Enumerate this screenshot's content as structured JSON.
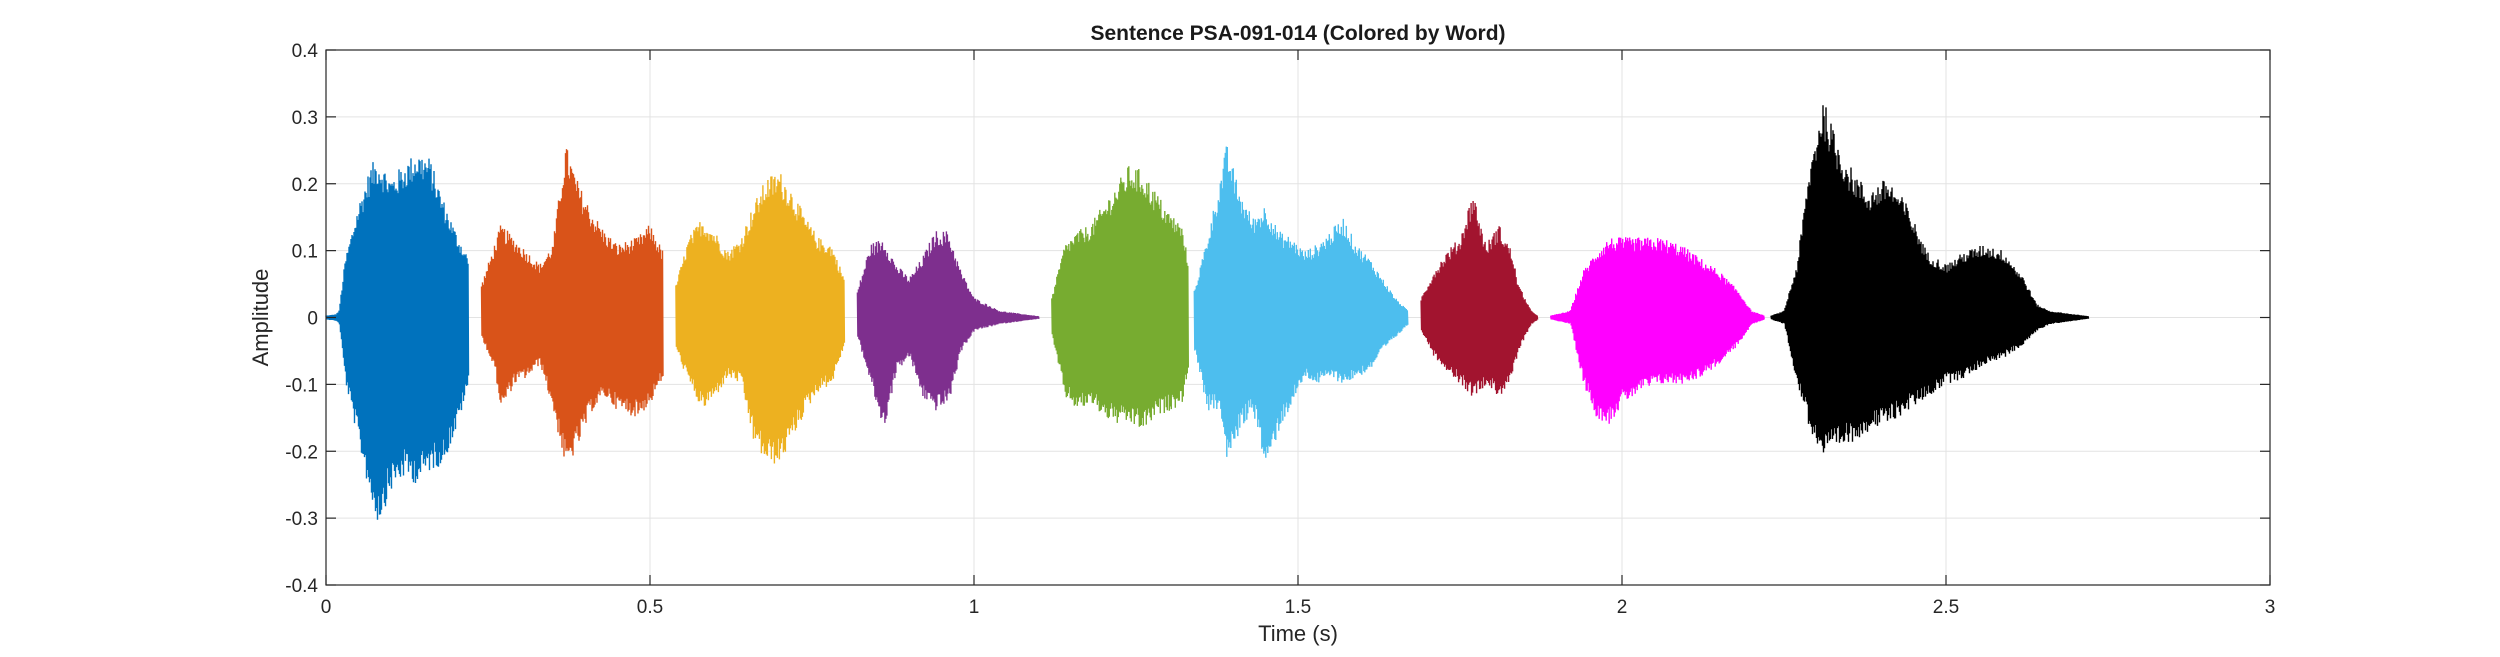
{
  "chart_data": {
    "type": "line",
    "title": "Sentence PSA-091-014 (Colored by Word)",
    "xlabel": "Time (s)",
    "ylabel": "Amplitude",
    "xlim": [
      0,
      3
    ],
    "ylim": [
      -0.4,
      0.4
    ],
    "xticks": [
      0,
      0.5,
      1,
      1.5,
      2,
      2.5,
      3
    ],
    "xtick_labels": [
      "0",
      "0.5",
      "1",
      "1.5",
      "2",
      "2.5",
      "3"
    ],
    "yticks": [
      -0.4,
      -0.3,
      -0.2,
      -0.1,
      0,
      0.1,
      0.2,
      0.3,
      0.4
    ],
    "ytick_labels": [
      "-0.4",
      "-0.3",
      "-0.2",
      "-0.1",
      "0",
      "0.1",
      "0.2",
      "0.3",
      "0.4"
    ],
    "grid": true,
    "legend": "none",
    "series": [
      {
        "color": "#0072BD",
        "start": 0.0,
        "end": 0.22,
        "envelope": [
          [
            0.0,
            0.003,
            -0.003
          ],
          [
            0.015,
            0.005,
            -0.005
          ],
          [
            0.02,
            0.01,
            -0.01
          ],
          [
            0.03,
            0.09,
            -0.1
          ],
          [
            0.05,
            0.17,
            -0.19
          ],
          [
            0.07,
            0.23,
            -0.28
          ],
          [
            0.08,
            0.24,
            -0.31
          ],
          [
            0.1,
            0.21,
            -0.26
          ],
          [
            0.12,
            0.23,
            -0.24
          ],
          [
            0.14,
            0.25,
            -0.25
          ],
          [
            0.16,
            0.24,
            -0.23
          ],
          [
            0.18,
            0.18,
            -0.22
          ],
          [
            0.2,
            0.13,
            -0.17
          ],
          [
            0.22,
            0.09,
            -0.1
          ]
        ]
      },
      {
        "color": "#D95319",
        "start": 0.24,
        "end": 0.52,
        "envelope": [
          [
            0.24,
            0.05,
            -0.03
          ],
          [
            0.26,
            0.11,
            -0.08
          ],
          [
            0.27,
            0.14,
            -0.14
          ],
          [
            0.29,
            0.12,
            -0.1
          ],
          [
            0.31,
            0.1,
            -0.09
          ],
          [
            0.33,
            0.08,
            -0.07
          ],
          [
            0.35,
            0.11,
            -0.14
          ],
          [
            0.37,
            0.26,
            -0.23
          ],
          [
            0.39,
            0.2,
            -0.19
          ],
          [
            0.41,
            0.16,
            -0.14
          ],
          [
            0.43,
            0.13,
            -0.12
          ],
          [
            0.45,
            0.11,
            -0.14
          ],
          [
            0.48,
            0.12,
            -0.15
          ],
          [
            0.5,
            0.14,
            -0.13
          ],
          [
            0.52,
            0.1,
            -0.09
          ]
        ]
      },
      {
        "color": "#EDB120",
        "start": 0.54,
        "end": 0.8,
        "envelope": [
          [
            0.54,
            0.05,
            -0.05
          ],
          [
            0.56,
            0.12,
            -0.1
          ],
          [
            0.58,
            0.15,
            -0.14
          ],
          [
            0.6,
            0.13,
            -0.12
          ],
          [
            0.62,
            0.1,
            -0.09
          ],
          [
            0.64,
            0.12,
            -0.1
          ],
          [
            0.66,
            0.17,
            -0.19
          ],
          [
            0.68,
            0.21,
            -0.22
          ],
          [
            0.7,
            0.22,
            -0.22
          ],
          [
            0.72,
            0.19,
            -0.18
          ],
          [
            0.74,
            0.15,
            -0.14
          ],
          [
            0.76,
            0.12,
            -0.11
          ],
          [
            0.78,
            0.11,
            -0.1
          ],
          [
            0.8,
            0.06,
            -0.04
          ]
        ]
      },
      {
        "color": "#7E2F8E",
        "start": 0.82,
        "end": 1.1,
        "envelope": [
          [
            0.82,
            0.04,
            -0.03
          ],
          [
            0.84,
            0.11,
            -0.1
          ],
          [
            0.86,
            0.12,
            -0.17
          ],
          [
            0.88,
            0.08,
            -0.08
          ],
          [
            0.9,
            0.06,
            -0.06
          ],
          [
            0.92,
            0.09,
            -0.12
          ],
          [
            0.94,
            0.13,
            -0.14
          ],
          [
            0.96,
            0.13,
            -0.13
          ],
          [
            0.98,
            0.07,
            -0.05
          ],
          [
            1.0,
            0.03,
            -0.02
          ],
          [
            1.04,
            0.01,
            -0.01
          ],
          [
            1.1,
            0.002,
            -0.002
          ]
        ]
      },
      {
        "color": "#77AC30",
        "start": 1.12,
        "end": 1.33,
        "envelope": [
          [
            1.12,
            0.03,
            -0.03
          ],
          [
            1.14,
            0.11,
            -0.12
          ],
          [
            1.16,
            0.13,
            -0.14
          ],
          [
            1.18,
            0.14,
            -0.13
          ],
          [
            1.2,
            0.17,
            -0.15
          ],
          [
            1.22,
            0.2,
            -0.16
          ],
          [
            1.24,
            0.23,
            -0.16
          ],
          [
            1.26,
            0.22,
            -0.17
          ],
          [
            1.28,
            0.19,
            -0.15
          ],
          [
            1.3,
            0.16,
            -0.14
          ],
          [
            1.32,
            0.14,
            -0.13
          ],
          [
            1.33,
            0.09,
            -0.08
          ]
        ]
      },
      {
        "color": "#4DBEEE",
        "start": 1.34,
        "end": 1.67,
        "envelope": [
          [
            1.34,
            0.04,
            -0.05
          ],
          [
            1.36,
            0.12,
            -0.14
          ],
          [
            1.38,
            0.21,
            -0.14
          ],
          [
            1.39,
            0.26,
            -0.22
          ],
          [
            1.41,
            0.19,
            -0.17
          ],
          [
            1.43,
            0.15,
            -0.14
          ],
          [
            1.45,
            0.17,
            -0.23
          ],
          [
            1.47,
            0.13,
            -0.17
          ],
          [
            1.49,
            0.12,
            -0.13
          ],
          [
            1.51,
            0.1,
            -0.09
          ],
          [
            1.53,
            0.11,
            -0.1
          ],
          [
            1.55,
            0.13,
            -0.09
          ],
          [
            1.57,
            0.15,
            -0.1
          ],
          [
            1.59,
            0.11,
            -0.09
          ],
          [
            1.61,
            0.09,
            -0.08
          ],
          [
            1.63,
            0.06,
            -0.05
          ],
          [
            1.65,
            0.03,
            -0.03
          ],
          [
            1.67,
            0.01,
            -0.01
          ]
        ]
      },
      {
        "color": "#A2142F",
        "start": 1.69,
        "end": 1.87,
        "envelope": [
          [
            1.69,
            0.03,
            -0.02
          ],
          [
            1.71,
            0.07,
            -0.06
          ],
          [
            1.73,
            0.1,
            -0.08
          ],
          [
            1.75,
            0.12,
            -0.1
          ],
          [
            1.77,
            0.19,
            -0.12
          ],
          [
            1.79,
            0.11,
            -0.1
          ],
          [
            1.81,
            0.14,
            -0.12
          ],
          [
            1.83,
            0.1,
            -0.09
          ],
          [
            1.84,
            0.05,
            -0.05
          ],
          [
            1.86,
            0.01,
            -0.01
          ],
          [
            1.87,
            0.003,
            -0.003
          ]
        ]
      },
      {
        "color": "#FF00FF",
        "start": 1.89,
        "end": 2.22,
        "envelope": [
          [
            1.89,
            0.003,
            -0.003
          ],
          [
            1.92,
            0.01,
            -0.01
          ],
          [
            1.94,
            0.07,
            -0.1
          ],
          [
            1.96,
            0.1,
            -0.15
          ],
          [
            1.98,
            0.12,
            -0.16
          ],
          [
            2.0,
            0.12,
            -0.13
          ],
          [
            2.03,
            0.12,
            -0.11
          ],
          [
            2.06,
            0.12,
            -0.1
          ],
          [
            2.09,
            0.11,
            -0.1
          ],
          [
            2.12,
            0.09,
            -0.09
          ],
          [
            2.15,
            0.07,
            -0.07
          ],
          [
            2.18,
            0.04,
            -0.04
          ],
          [
            2.2,
            0.01,
            -0.01
          ],
          [
            2.22,
            0.003,
            -0.003
          ]
        ]
      },
      {
        "color": "#000000",
        "start": 2.23,
        "end": 2.72,
        "envelope": [
          [
            2.23,
            0.003,
            -0.003
          ],
          [
            2.25,
            0.01,
            -0.01
          ],
          [
            2.27,
            0.08,
            -0.1
          ],
          [
            2.29,
            0.23,
            -0.17
          ],
          [
            2.31,
            0.33,
            -0.21
          ],
          [
            2.33,
            0.27,
            -0.2
          ],
          [
            2.35,
            0.23,
            -0.19
          ],
          [
            2.38,
            0.19,
            -0.17
          ],
          [
            2.41,
            0.21,
            -0.16
          ],
          [
            2.44,
            0.17,
            -0.14
          ],
          [
            2.47,
            0.1,
            -0.12
          ],
          [
            2.5,
            0.08,
            -0.1
          ],
          [
            2.53,
            0.1,
            -0.09
          ],
          [
            2.56,
            0.11,
            -0.07
          ],
          [
            2.59,
            0.1,
            -0.06
          ],
          [
            2.62,
            0.06,
            -0.04
          ],
          [
            2.64,
            0.02,
            -0.02
          ],
          [
            2.66,
            0.01,
            -0.01
          ],
          [
            2.72,
            0.002,
            -0.002
          ]
        ]
      }
    ]
  }
}
